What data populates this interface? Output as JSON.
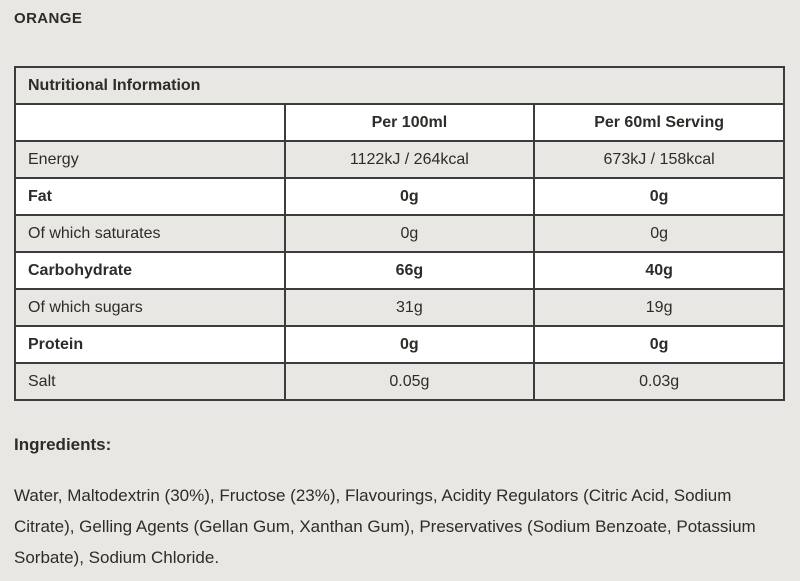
{
  "page": {
    "title": "ORANGE"
  },
  "colors": {
    "page_background": "#e9e7e4",
    "row_white": "#ffffff",
    "row_gray": "#e9e7e4",
    "table_border": "#3c3c3c",
    "text": "#2e2c29"
  },
  "table": {
    "header": "Nutritional Information",
    "columns": [
      "",
      "Per 100ml",
      "Per 60ml Serving"
    ],
    "rows": [
      {
        "label": "Energy",
        "per_100ml": "1122kJ / 264kcal",
        "per_serving": "673kJ / 158kcal",
        "bold": false
      },
      {
        "label": "Fat",
        "per_100ml": "0g",
        "per_serving": "0g",
        "bold": true
      },
      {
        "label": "Of which saturates",
        "per_100ml": "0g",
        "per_serving": "0g",
        "bold": false
      },
      {
        "label": "Carbohydrate",
        "per_100ml": "66g",
        "per_serving": "40g",
        "bold": true
      },
      {
        "label": "Of which sugars",
        "per_100ml": "31g",
        "per_serving": "19g",
        "bold": false
      },
      {
        "label": "Protein",
        "per_100ml": "0g",
        "per_serving": "0g",
        "bold": true
      },
      {
        "label": "Salt",
        "per_100ml": "0.05g",
        "per_serving": "0.03g",
        "bold": false
      }
    ]
  },
  "ingredients": {
    "heading": "Ingredients:",
    "text": "Water, Maltodextrin (30%), Fructose (23%), Flavourings, Acidity Regulators (Citric Acid, Sodium Citrate), Gelling Agents (Gellan Gum, Xanthan Gum), Preservatives (Sodium Benzoate, Potassium Sorbate), Sodium Chloride."
  }
}
